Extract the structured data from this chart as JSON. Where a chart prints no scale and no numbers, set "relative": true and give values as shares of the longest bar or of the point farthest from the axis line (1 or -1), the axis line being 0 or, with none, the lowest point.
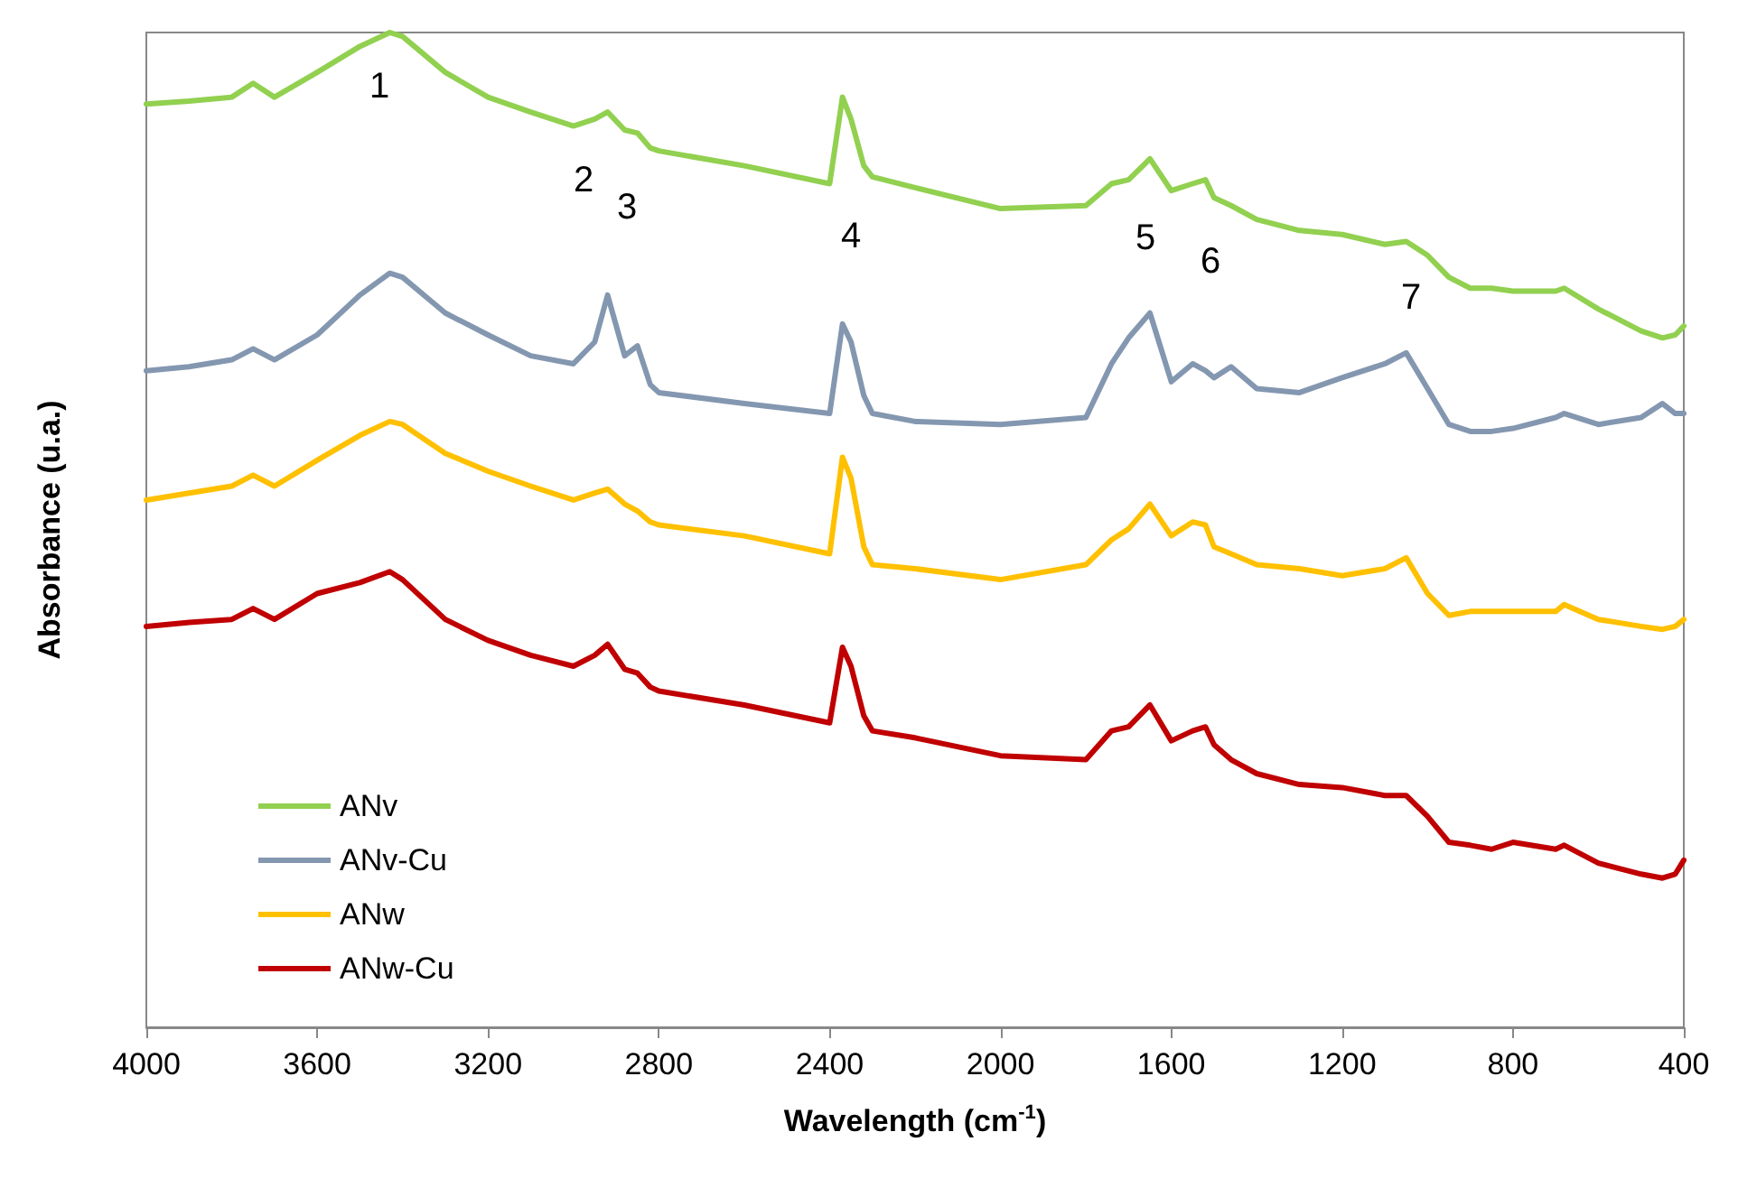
{
  "chart_data": {
    "type": "line",
    "relative": true,
    "xlabel": "Wavelength (cm$^{-1}$)",
    "ylabel": "Absorbance (u.a.)",
    "xlim": [
      4000,
      400
    ],
    "xticks": [
      4000,
      3600,
      3200,
      2800,
      2400,
      2000,
      1600,
      1200,
      800,
      400
    ],
    "legend": "bottom left",
    "marker": "none",
    "x": [
      4000,
      3900,
      3800,
      3750,
      3700,
      3600,
      3500,
      3430,
      3400,
      3300,
      3200,
      3100,
      3000,
      2950,
      2920,
      2880,
      2850,
      2820,
      2800,
      2600,
      2400,
      2370,
      2350,
      2320,
      2300,
      2200,
      2000,
      1800,
      1740,
      1700,
      1650,
      1600,
      1550,
      1520,
      1500,
      1460,
      1400,
      1300,
      1200,
      1100,
      1050,
      1000,
      950,
      900,
      850,
      800,
      700,
      680,
      600,
      500,
      450,
      420,
      400
    ],
    "series": [
      {
        "name": "ANv",
        "color": "#92d050",
        "values": [
          0.928,
          0.931,
          0.935,
          0.949,
          0.935,
          0.96,
          0.986,
          1,
          0.996,
          0.96,
          0.935,
          0.92,
          0.906,
          0.913,
          0.92,
          0.902,
          0.899,
          0.884,
          0.881,
          0.866,
          0.848,
          0.935,
          0.913,
          0.866,
          0.855,
          0.844,
          0.823,
          0.826,
          0.848,
          0.852,
          0.873,
          0.841,
          0.848,
          0.852,
          0.834,
          0.826,
          0.812,
          0.801,
          0.797,
          0.787,
          0.79,
          0.776,
          0.754,
          0.743,
          0.743,
          0.74,
          0.74,
          0.743,
          0.722,
          0.7,
          0.693,
          0.696,
          0.705
        ]
      },
      {
        "name": "ANv-Cu",
        "color": "#8497b0",
        "values": [
          0.66,
          0.664,
          0.671,
          0.682,
          0.671,
          0.696,
          0.736,
          0.758,
          0.754,
          0.718,
          0.696,
          0.675,
          0.667,
          0.689,
          0.736,
          0.675,
          0.685,
          0.646,
          0.638,
          0.627,
          0.617,
          0.707,
          0.689,
          0.635,
          0.617,
          0.609,
          0.606,
          0.613,
          0.667,
          0.693,
          0.718,
          0.649,
          0.667,
          0.66,
          0.653,
          0.664,
          0.642,
          0.638,
          0.653,
          0.667,
          0.678,
          0.642,
          0.606,
          0.599,
          0.599,
          0.602,
          0.613,
          0.617,
          0.606,
          0.613,
          0.627,
          0.617,
          0.617
        ]
      },
      {
        "name": "ANw",
        "color": "#ffc000",
        "values": [
          0.53,
          0.537,
          0.544,
          0.555,
          0.544,
          0.57,
          0.595,
          0.609,
          0.606,
          0.577,
          0.559,
          0.544,
          0.53,
          0.537,
          0.541,
          0.526,
          0.519,
          0.508,
          0.505,
          0.494,
          0.476,
          0.573,
          0.552,
          0.483,
          0.465,
          0.461,
          0.45,
          0.465,
          0.49,
          0.501,
          0.526,
          0.494,
          0.508,
          0.505,
          0.483,
          0.476,
          0.465,
          0.461,
          0.454,
          0.461,
          0.472,
          0.436,
          0.414,
          0.418,
          0.418,
          0.418,
          0.418,
          0.425,
          0.41,
          0.403,
          0.4,
          0.403,
          0.41
        ]
      },
      {
        "name": "ANw-Cu",
        "color": "#c00000",
        "values": [
          0.403,
          0.407,
          0.41,
          0.421,
          0.41,
          0.436,
          0.447,
          0.458,
          0.45,
          0.41,
          0.389,
          0.374,
          0.363,
          0.374,
          0.385,
          0.36,
          0.356,
          0.342,
          0.338,
          0.324,
          0.306,
          0.382,
          0.363,
          0.313,
          0.298,
          0.291,
          0.273,
          0.269,
          0.298,
          0.302,
          0.324,
          0.288,
          0.298,
          0.302,
          0.284,
          0.269,
          0.255,
          0.244,
          0.241,
          0.233,
          0.233,
          0.212,
          0.186,
          0.183,
          0.179,
          0.186,
          0.179,
          0.183,
          0.165,
          0.154,
          0.15,
          0.154,
          0.168
        ]
      }
    ],
    "annotations": [
      "1",
      "2",
      "3",
      "4",
      "5",
      "6",
      "7"
    ]
  }
}
